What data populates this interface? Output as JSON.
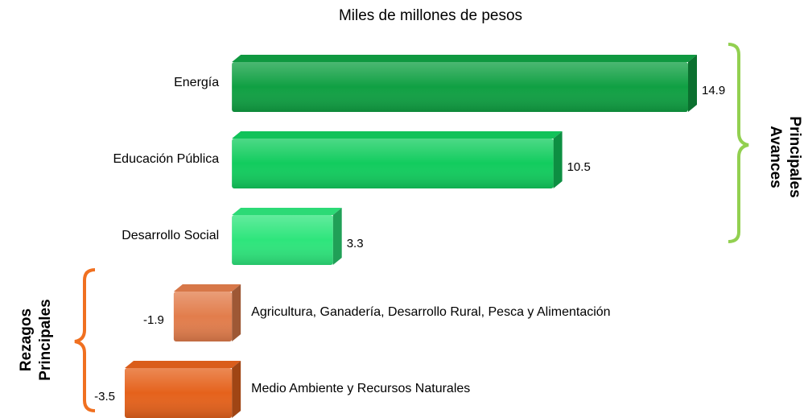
{
  "chart_data": {
    "type": "bar",
    "orientation": "horizontal",
    "title": "Miles de millones de pesos",
    "categories": [
      "Energía",
      "Educación Pública",
      "Desarrollo Social",
      "Agricultura, Ganadería, Desarrollo Rural, Pesca y Alimentación",
      "Medio Ambiente y Recursos Naturales"
    ],
    "values": [
      14.9,
      10.5,
      3.3,
      -1.9,
      -3.5
    ],
    "colors": [
      "#10a043",
      "#12cc5e",
      "#2ee57c",
      "#e27d4c",
      "#e5621c"
    ],
    "annotations": [
      {
        "lines": [
          "Principales",
          "Avances"
        ],
        "color": "#92d050"
      },
      {
        "lines": [
          "Principales",
          "Rezagos"
        ],
        "color": "#f07020"
      }
    ]
  }
}
